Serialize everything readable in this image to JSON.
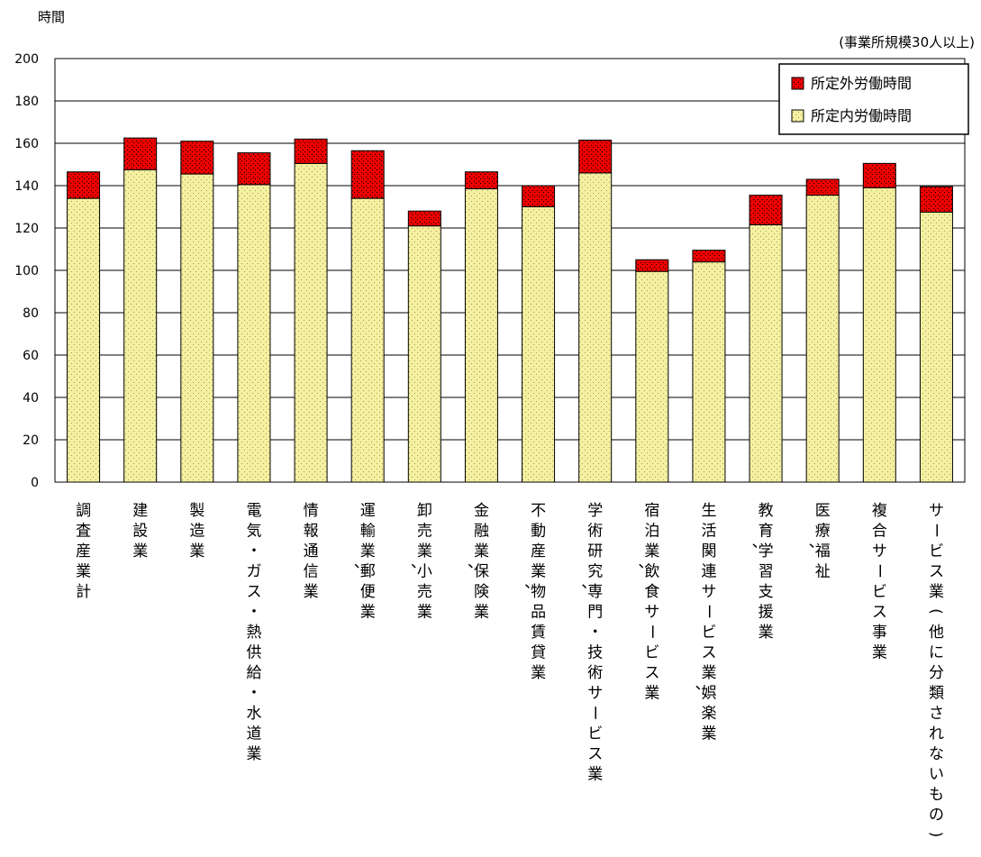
{
  "chart_data": {
    "type": "bar",
    "stacked": true,
    "ylabel": "時間",
    "note": "(事業所規模30人以上)",
    "ylim": [
      0,
      200
    ],
    "yticks": [
      0,
      20,
      40,
      60,
      80,
      100,
      120,
      140,
      160,
      180,
      200
    ],
    "grid": true,
    "legend_position": "top-right",
    "categories": [
      "調査産業計",
      "建設業",
      "製造業",
      "電気・ガス・熱供給・水道業",
      "情報通信業",
      "運輸業,郵便業",
      "卸売業,小売業",
      "金融業,保険業",
      "不動産業,物品賃貸業",
      "学術研究,専門・技術サービス業",
      "宿泊業,飲食サービス業",
      "生活関連サービス業,娯楽業",
      "教育,学習支援業",
      "医療,福祉",
      "複合サービス事業",
      "サービス業(他に分類されないもの)"
    ],
    "series": [
      {
        "name": "所定内労働時間",
        "color": "#f5f0a0",
        "values": [
          134,
          147.5,
          145.5,
          140.5,
          150.5,
          134,
          121,
          138.5,
          130,
          146,
          99.5,
          104,
          121.5,
          135.5,
          139,
          127.5
        ]
      },
      {
        "name": "所定外労働時間",
        "color": "#ee0000",
        "values": [
          12.5,
          15,
          15.5,
          15,
          11.5,
          22.5,
          7,
          8,
          10,
          15.5,
          5.5,
          5.5,
          14,
          7.5,
          11.5,
          12
        ]
      }
    ],
    "legend_order": [
      "所定外労働時間",
      "所定内労働時間"
    ]
  }
}
